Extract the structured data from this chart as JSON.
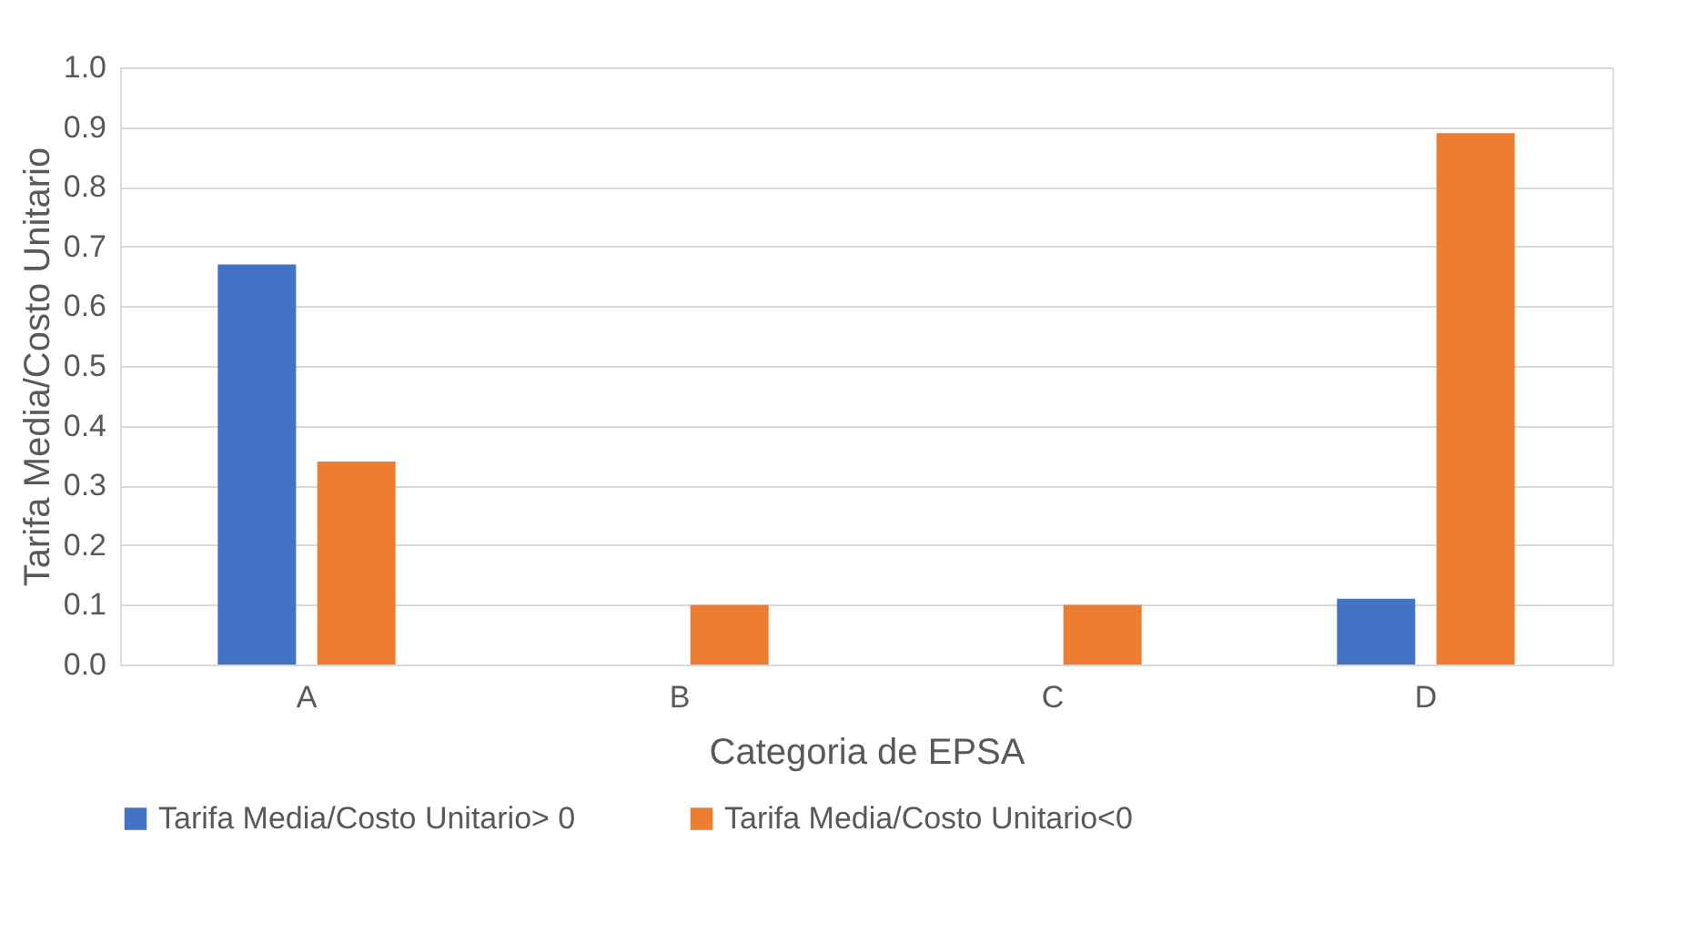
{
  "chart_data": {
    "type": "bar",
    "xlabel": "Categoria de EPSA",
    "ylabel": "Tarifa Media/Costo Unitario",
    "categories": [
      "A",
      "B",
      "C",
      "D"
    ],
    "series": [
      {
        "name": "Tarifa Media/Costo Unitario> 0",
        "color": "#4472c4",
        "values": [
          0.67,
          null,
          null,
          0.11
        ]
      },
      {
        "name": "Tarifa Media/Costo Unitario<0",
        "color": "#ed7d31",
        "values": [
          0.34,
          0.1,
          0.1,
          0.89
        ]
      }
    ],
    "ylim": [
      0,
      1.0
    ],
    "yticks": [
      {
        "value": 0,
        "label": "0.0"
      },
      {
        "value": 0.1,
        "label": "0.1"
      },
      {
        "value": 0.2,
        "label": "0.2"
      },
      {
        "value": 0.3,
        "label": "0.3"
      },
      {
        "value": 0.4,
        "label": "0.4"
      },
      {
        "value": 0.5,
        "label": "0.5"
      },
      {
        "value": 0.6,
        "label": "0.6"
      },
      {
        "value": 0.7,
        "label": "0.7"
      },
      {
        "value": 0.8,
        "label": "0.8"
      },
      {
        "value": 0.9,
        "label": "0.9"
      },
      {
        "value": 1.0,
        "label": "1.0"
      }
    ],
    "grid": "y",
    "legend": "bottom"
  }
}
